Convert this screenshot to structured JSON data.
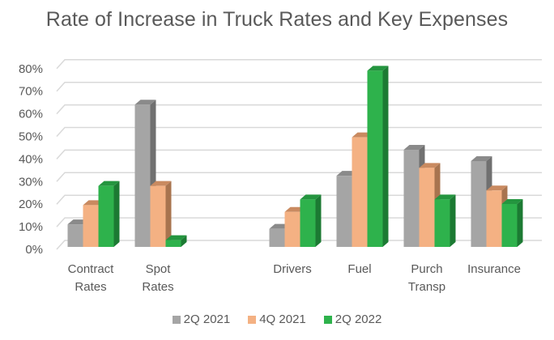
{
  "chart_data": {
    "type": "bar",
    "style": "3d-clustered-column",
    "title": "Rate of Increase in Truck Rates and Key Expenses",
    "xlabel": "",
    "ylabel": "",
    "ylim": [
      0,
      80
    ],
    "y_ticks": [
      "0%",
      "10%",
      "20%",
      "30%",
      "40%",
      "50%",
      "60%",
      "70%",
      "80%"
    ],
    "y_tick_values": [
      0,
      10,
      20,
      30,
      40,
      50,
      60,
      70,
      80
    ],
    "grid": true,
    "legend_position": "bottom",
    "categories": [
      [
        "Contract",
        "Rates"
      ],
      [
        "Spot",
        "Rates"
      ],
      [
        ""
      ],
      [
        "Drivers"
      ],
      [
        "Fuel"
      ],
      [
        "Purch",
        "Transp"
      ],
      [
        "Insurance"
      ]
    ],
    "series": [
      {
        "name": "2Q 2021",
        "color": "#a5a5a5",
        "side_color": "#707070",
        "top_color": "#8a8a8a",
        "values": [
          10,
          63,
          null,
          8,
          31.5,
          43,
          38
        ]
      },
      {
        "name": "4Q 2021",
        "color": "#f4b183",
        "side_color": "#a8744f",
        "top_color": "#c98a60",
        "values": [
          18.5,
          27,
          null,
          15.5,
          48.5,
          35,
          25
        ]
      },
      {
        "name": "2Q 2022",
        "color": "#2eb24c",
        "side_color": "#1c7a33",
        "top_color": "#24953f",
        "values": [
          27,
          3,
          null,
          21,
          78,
          21,
          19
        ]
      }
    ]
  }
}
